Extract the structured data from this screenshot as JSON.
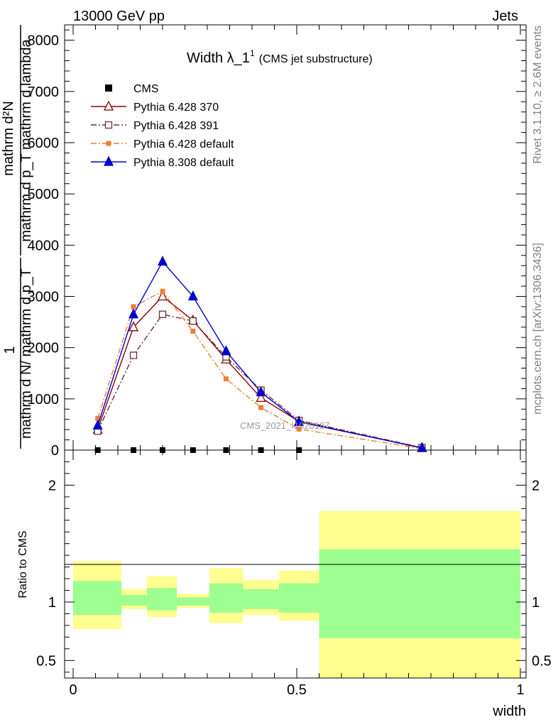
{
  "header": {
    "left": "13000 GeV pp",
    "right": "Jets"
  },
  "side_labels": {
    "rivet": "Rivet 3.1.10, ≥ 2.6M events",
    "mcplots": "mcplots.cern.ch [arXiv:1306.3436]"
  },
  "chart_data": {
    "type": "line",
    "title": "Width λ_1",
    "title_sup": "1",
    "title_note": "(CMS jet substructure)",
    "watermark": "CMS_2021_I1920187",
    "ylabel_upper": {
      "lhs": "1",
      "lhs_den": "mathrm d N/ mathrm d p_T",
      "num": "mathrm d²N",
      "den": "mathrm d p_T mathrm d lambda"
    },
    "ylabel_lower": "Ratio to CMS",
    "xlabel": "width",
    "xlim": [
      0,
      1
    ],
    "ylim": [
      0,
      8300
    ],
    "yticks": [
      0,
      1000,
      2000,
      3000,
      4000,
      5000,
      6000,
      7000,
      8000
    ],
    "ytick_labels": [
      "0",
      "1000",
      "2000",
      "3000",
      "4000",
      "5000",
      "6000",
      "7000",
      "8000"
    ],
    "xticks": [
      0,
      0.5,
      1
    ],
    "xtick_labels": [
      "0",
      "0.5",
      "1"
    ],
    "ratio_ylim": [
      0.35,
      2.3
    ],
    "ratio_yticks": [
      0.5,
      1,
      2
    ],
    "ratio_ytick_labels": [
      "0.5",
      "1",
      "2"
    ],
    "legend_position": "top-left",
    "cms": {
      "name": "CMS",
      "x": [
        0.055,
        0.135,
        0.2,
        0.268,
        0.342,
        0.42,
        0.505
      ],
      "y": [
        0,
        0,
        0,
        0,
        0,
        0,
        0
      ]
    },
    "series": [
      {
        "name": "Pythia 6.428 370",
        "color": "#8b0000",
        "dash": "",
        "marker": "triangle-open",
        "x": [
          0.055,
          0.135,
          0.2,
          0.268,
          0.342,
          0.42,
          0.505,
          0.78
        ],
        "y": [
          400,
          2400,
          3000,
          2530,
          1770,
          1020,
          560,
          40
        ]
      },
      {
        "name": "Pythia 6.428 391",
        "color": "#6b2f3a",
        "dash": "8 3 2 3",
        "marker": "square-open",
        "x": [
          0.055,
          0.135,
          0.2,
          0.268,
          0.342,
          0.42,
          0.505,
          0.78
        ],
        "y": [
          370,
          1850,
          2650,
          2520,
          1820,
          1170,
          580,
          50
        ]
      },
      {
        "name": "Pythia 6.428 default",
        "color": "#ee7f32",
        "dash": "8 3 2 3",
        "marker": "square-filled",
        "x": [
          0.055,
          0.135,
          0.2,
          0.268,
          0.342,
          0.42,
          0.505,
          0.78
        ],
        "y": [
          620,
          2800,
          3100,
          2320,
          1390,
          830,
          410,
          30
        ]
      },
      {
        "name": "Pythia 8.308 default",
        "color": "#0000cc",
        "dash": "",
        "marker": "triangle-filled",
        "x": [
          0.055,
          0.135,
          0.2,
          0.268,
          0.342,
          0.42,
          0.505,
          0.78
        ],
        "y": [
          480,
          2650,
          3680,
          3000,
          1930,
          1130,
          550,
          45
        ]
      }
    ],
    "ratio_bands": [
      {
        "x0": 0.0,
        "x1": 0.108,
        "yellow": [
          0.77,
          1.35
        ],
        "green": [
          0.89,
          1.18
        ]
      },
      {
        "x0": 0.108,
        "x1": 0.165,
        "yellow": [
          0.94,
          1.11
        ],
        "green": [
          0.97,
          1.06
        ]
      },
      {
        "x0": 0.165,
        "x1": 0.232,
        "yellow": [
          0.87,
          1.22
        ],
        "green": [
          0.93,
          1.12
        ]
      },
      {
        "x0": 0.232,
        "x1": 0.305,
        "yellow": [
          0.95,
          1.07
        ],
        "green": [
          0.97,
          1.04
        ]
      },
      {
        "x0": 0.305,
        "x1": 0.38,
        "yellow": [
          0.82,
          1.29
        ],
        "green": [
          0.91,
          1.16
        ]
      },
      {
        "x0": 0.38,
        "x1": 0.46,
        "yellow": [
          0.89,
          1.19
        ],
        "green": [
          0.94,
          1.11
        ]
      },
      {
        "x0": 0.46,
        "x1": 0.55,
        "yellow": [
          0.84,
          1.27
        ],
        "green": [
          0.91,
          1.16
        ]
      },
      {
        "x0": 0.55,
        "x1": 1.0,
        "yellow": [
          0.35,
          1.78
        ],
        "green": [
          0.69,
          1.45
        ]
      }
    ],
    "colors": {
      "yellow_band": "#ffff8f",
      "green_band": "#9cff8f",
      "cms_marker": "#000000",
      "side_text": "#808080",
      "watermark": "#999999"
    }
  }
}
